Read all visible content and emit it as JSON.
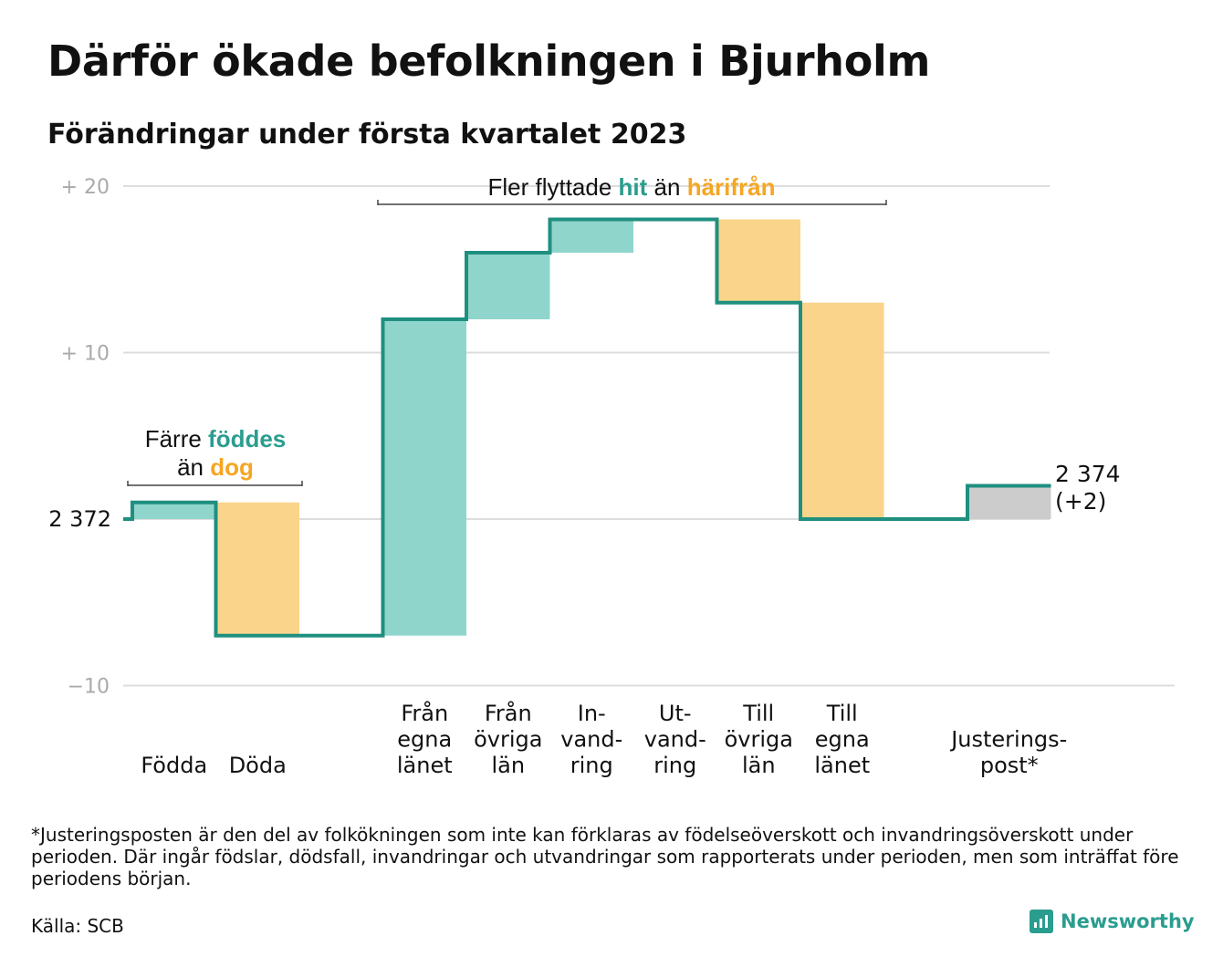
{
  "title": "Därför ökade befolkningen i Bjurholm",
  "subtitle": "Förändringar under första kvartalet 2023",
  "chart_data": {
    "type": "waterfall",
    "baseline": 2372,
    "yticks": [
      {
        "value": 20,
        "label": "+ 20"
      },
      {
        "value": 10,
        "label": "+ 10"
      },
      {
        "value": 0,
        "label": "2 372"
      },
      {
        "value": -10,
        "label": "−10"
      }
    ],
    "ylim": [
      -10,
      20
    ],
    "steps": [
      {
        "label": [
          "Födda"
        ],
        "change": 1,
        "kind": "inflow"
      },
      {
        "label": [
          "Döda"
        ],
        "change": -8,
        "kind": "outflow"
      },
      {
        "label": [],
        "change": 0,
        "kind": "gap"
      },
      {
        "label": [
          "Från",
          "egna",
          "länet"
        ],
        "change": 19,
        "kind": "inflow"
      },
      {
        "label": [
          "Från",
          "övriga",
          "län"
        ],
        "change": 4,
        "kind": "inflow"
      },
      {
        "label": [
          "In-",
          "vand-",
          "ring"
        ],
        "change": 2,
        "kind": "inflow"
      },
      {
        "label": [
          "Ut-",
          "vand-",
          "ring"
        ],
        "change": 0,
        "kind": "outflow"
      },
      {
        "label": [
          "Till",
          "övriga",
          "län"
        ],
        "change": -5,
        "kind": "outflow"
      },
      {
        "label": [
          "Till",
          "egna",
          "länet"
        ],
        "change": -13,
        "kind": "outflow"
      },
      {
        "label": [],
        "change": 0,
        "kind": "gap"
      },
      {
        "label": [
          "Justerings-",
          "post*"
        ],
        "change": 2,
        "kind": "adjustment"
      }
    ],
    "end_label": [
      "2 374",
      "(+2)"
    ],
    "annotations": [
      {
        "lines": [
          [
            {
              "text": "Färre ",
              "style": "normal"
            },
            {
              "text": "föddes",
              "style": "in"
            }
          ],
          [
            {
              "text": "än ",
              "style": "normal"
            },
            {
              "text": "dog",
              "style": "out"
            }
          ]
        ]
      },
      {
        "lines": [
          [
            {
              "text": "Fler flyttade ",
              "style": "normal"
            },
            {
              "text": "hit",
              "style": "in"
            },
            {
              "text": " än ",
              "style": "normal"
            },
            {
              "text": "härifrån",
              "style": "out"
            }
          ]
        ]
      }
    ],
    "colors": {
      "inflow": "#8fd5cc",
      "outflow": "#fad48b",
      "adjustment": "#cccccc",
      "line": "#1f8f80",
      "in_text": "#2a9d8f",
      "out_text": "#f5a623",
      "grid": "#dddddd",
      "tick": "#aaaaaa"
    }
  },
  "footnote": "*Justeringsposten är den del av folkökningen som inte kan förklaras av födelseöverskott och invandringsöverskott under perioden. Där ingår födslar, dödsfall, invandringar och utvandringar som rapporterats under perioden, men som inträffat före periodens början.",
  "source": "Källa: SCB",
  "brand": "Newsworthy"
}
